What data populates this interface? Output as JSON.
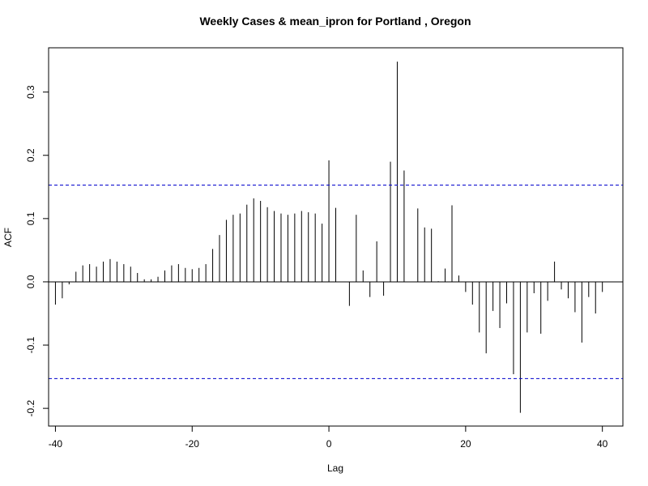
{
  "chart_data": {
    "type": "bar",
    "title": "Weekly Cases & mean_ipron for Portland , Oregon",
    "xlabel": "Lag",
    "ylabel": "ACF",
    "xlim": [
      -41,
      43
    ],
    "ylim": [
      -0.228,
      0.37
    ],
    "x_ticks": [
      -40,
      -20,
      0,
      20,
      40
    ],
    "x_tick_labels": [
      "-40",
      "-20",
      "0",
      "20",
      "40"
    ],
    "y_ticks": [
      -0.2,
      -0.1,
      0.0,
      0.1,
      0.2,
      0.3
    ],
    "y_tick_labels": [
      "-0.2",
      "-0.1",
      "0.0",
      "0.1",
      "0.2",
      "0.3"
    ],
    "confidence_bound": 0.153,
    "colors": {
      "bars": "#000000",
      "zero_line": "#000000",
      "confidence_lines": "#0000cc"
    },
    "lags": [
      -40,
      -39,
      -38,
      -37,
      -36,
      -35,
      -34,
      -33,
      -32,
      -31,
      -30,
      -29,
      -28,
      -27,
      -26,
      -25,
      -24,
      -23,
      -22,
      -21,
      -20,
      -19,
      -18,
      -17,
      -16,
      -15,
      -14,
      -13,
      -12,
      -11,
      -10,
      -9,
      -8,
      -7,
      -6,
      -5,
      -4,
      -3,
      -2,
      -1,
      0,
      1,
      2,
      3,
      4,
      5,
      6,
      7,
      8,
      9,
      10,
      11,
      12,
      13,
      14,
      15,
      16,
      17,
      18,
      19,
      20,
      21,
      22,
      23,
      24,
      25,
      26,
      27,
      28,
      29,
      30,
      31,
      32,
      33,
      34,
      35,
      36,
      37,
      38,
      39,
      40
    ],
    "values": [
      -0.036,
      -0.026,
      -0.004,
      0.016,
      0.026,
      0.028,
      0.024,
      0.032,
      0.036,
      0.032,
      0.028,
      0.024,
      0.014,
      0.004,
      0.004,
      0.008,
      0.018,
      0.026,
      0.028,
      0.022,
      0.02,
      0.022,
      0.028,
      0.052,
      0.074,
      0.098,
      0.106,
      0.108,
      0.122,
      0.132,
      0.128,
      0.118,
      0.112,
      0.108,
      0.106,
      0.108,
      0.112,
      0.11,
      0.108,
      0.092,
      0.192,
      0.117,
      0,
      -0.038,
      0.106,
      0.018,
      -0.024,
      0.064,
      -0.022,
      0.19,
      0.348,
      0.176,
      0,
      0.116,
      0.086,
      0.084,
      0.001,
      0.021,
      0.121,
      0.01,
      -0.016,
      -0.036,
      -0.08,
      -0.113,
      -0.046,
      -0.073,
      -0.034,
      -0.146,
      -0.207,
      -0.08,
      -0.018,
      -0.082,
      -0.03,
      0.032,
      -0.012,
      -0.026,
      -0.048,
      -0.096,
      -0.024,
      -0.05,
      -0.016
    ]
  }
}
